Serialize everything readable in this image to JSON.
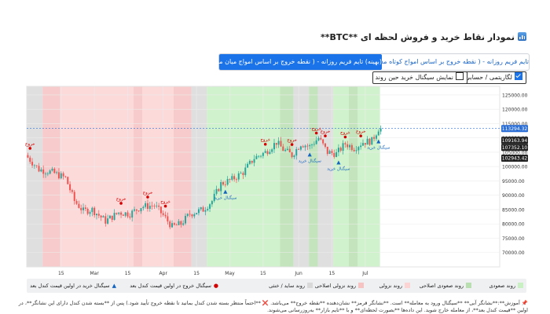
{
  "page": {
    "title": "نمودار نقاط خرید و فروش لحظه ای **BTC**",
    "title_icon": "bar-chart-icon"
  },
  "tabs": [
    {
      "label": "تایم فریم روزانه - ( نقطه خروج بر اساس امواج کوتاه مدت)",
      "active": false
    },
    {
      "label": "(بهینه) تایم فریم روزانه - ( نقطه خروج بر اساس امواج میان مدت)",
      "active": true
    }
  ],
  "options": {
    "log_label": "لگاریتمی / حسابی",
    "log_checked": true,
    "show_signals_label": "نمایش سیگنال خرید حین روند",
    "show_signals_checked": false
  },
  "chart_data": {
    "type": "candlestick",
    "y_axis": {
      "ticks": [
        70000,
        75000,
        80000,
        85000,
        90000,
        95000,
        100000,
        105000,
        110000,
        115000,
        120000,
        125000
      ],
      "tick_labels": [
        "70000.00",
        "75000.00",
        "80000.00",
        "85000.00",
        "90000.00",
        "95000.00",
        "100000.00",
        "105000.00",
        "110000.00",
        "115000.00",
        "120000.00",
        "125000.00"
      ]
    },
    "x_axis": {
      "ticks": [
        {
          "label": "15",
          "day": 15
        },
        {
          "label": "Mar",
          "day": 30
        },
        {
          "label": "15",
          "day": 45
        },
        {
          "label": "Apr",
          "day": 61
        },
        {
          "label": "15",
          "day": 76
        },
        {
          "label": "May",
          "day": 91
        },
        {
          "label": "15",
          "day": 106
        },
        {
          "label": "Jun",
          "day": 122
        },
        {
          "label": "15",
          "day": 137
        },
        {
          "label": "Jul",
          "day": 152
        }
      ]
    },
    "price_tags": [
      {
        "value": "113294.32",
        "price": 113294,
        "color": "#2b6fd6"
      },
      {
        "value": "109163.94",
        "price": 109164,
        "color": "#222222"
      },
      {
        "value": "107352.10",
        "price": 107352,
        "color": "#222222"
      },
      {
        "value": "102943.42",
        "price": 102943,
        "color": "#222222"
      }
    ],
    "start_price": 104000,
    "end_price": 113294,
    "waypoints": [
      [
        0,
        104000
      ],
      [
        6,
        99000
      ],
      [
        12,
        98000
      ],
      [
        18,
        96000
      ],
      [
        22,
        88000
      ],
      [
        26,
        84500
      ],
      [
        30,
        85000
      ],
      [
        36,
        81000
      ],
      [
        42,
        84000
      ],
      [
        47,
        83500
      ],
      [
        52,
        86000
      ],
      [
        58,
        86500
      ],
      [
        62,
        83000
      ],
      [
        66,
        79000
      ],
      [
        70,
        80000
      ],
      [
        74,
        83500
      ],
      [
        80,
        85000
      ],
      [
        84,
        88000
      ],
      [
        88,
        94000
      ],
      [
        93,
        95500
      ],
      [
        98,
        98000
      ],
      [
        103,
        103000
      ],
      [
        108,
        105000
      ],
      [
        113,
        108500
      ],
      [
        116,
        106000
      ],
      [
        120,
        104000
      ],
      [
        124,
        108000
      ],
      [
        128,
        107000
      ],
      [
        132,
        110000
      ],
      [
        136,
        105000
      ],
      [
        140,
        104500
      ],
      [
        144,
        108000
      ],
      [
        148,
        106500
      ],
      [
        152,
        108500
      ],
      [
        156,
        109000
      ],
      [
        159,
        113294
      ]
    ],
    "bands": [
      {
        "from": 0,
        "to": 7,
        "type": "sideways"
      },
      {
        "from": 7,
        "to": 15,
        "type": "weak-down"
      },
      {
        "from": 15,
        "to": 48,
        "type": "down"
      },
      {
        "from": 48,
        "to": 52,
        "type": "weak-down"
      },
      {
        "from": 52,
        "to": 66,
        "type": "down"
      },
      {
        "from": 66,
        "to": 74,
        "type": "weak-down"
      },
      {
        "from": 74,
        "to": 81,
        "type": "sideways"
      },
      {
        "from": 81,
        "to": 114,
        "type": "up"
      },
      {
        "from": 114,
        "to": 120,
        "type": "weak-up"
      },
      {
        "from": 120,
        "to": 127,
        "type": "sideways"
      },
      {
        "from": 127,
        "to": 131,
        "type": "weak-up"
      },
      {
        "from": 131,
        "to": 138,
        "type": "sideways"
      },
      {
        "from": 138,
        "to": 145,
        "type": "up"
      },
      {
        "from": 145,
        "to": 149,
        "type": "weak-up"
      },
      {
        "from": 149,
        "to": 159,
        "type": "up"
      }
    ],
    "signals": [
      {
        "kind": "exit",
        "day": 1,
        "label": "خروج"
      },
      {
        "kind": "exit",
        "day": 42,
        "label": "خروج"
      },
      {
        "kind": "exit",
        "day": 54,
        "label": "خروج"
      },
      {
        "kind": "exit",
        "day": 62,
        "label": "خروج"
      },
      {
        "kind": "exit",
        "day": 107,
        "label": "خروج"
      },
      {
        "kind": "exit",
        "day": 119,
        "label": "خروج"
      },
      {
        "kind": "exit",
        "day": 130,
        "label": "خروج"
      },
      {
        "kind": "exit",
        "day": 134,
        "label": "خروج"
      },
      {
        "kind": "exit",
        "day": 143,
        "label": "خروج"
      },
      {
        "kind": "exit",
        "day": 150,
        "label": "خروج"
      },
      {
        "kind": "buy",
        "day": 89,
        "label": "سیگنال خرید"
      },
      {
        "kind": "buy",
        "day": 127,
        "label": "سیگنال خرید"
      },
      {
        "kind": "buy",
        "day": 140,
        "label": "سیگنال خرید"
      },
      {
        "kind": "buy",
        "day": 158,
        "label": "سیگنال خرید"
      }
    ]
  },
  "legend": [
    {
      "label": "روند صعودی",
      "type": "swatch",
      "color": "#c8f0c3"
    },
    {
      "label": "روند صعودی اصلاحی",
      "type": "swatch",
      "color": "#b9dfb1"
    },
    {
      "label": "روند نزولی",
      "type": "swatch",
      "color": "#fcd4d4"
    },
    {
      "label": "روند نزولی اصلاحی",
      "type": "swatch",
      "color": "#f6c2c2"
    },
    {
      "label": "روند ساید / خنثی",
      "type": "swatch",
      "color": "#d9d9d9"
    },
    {
      "label": "سیگنال خروج در اولین قیمت کندل بعد",
      "type": "dot",
      "color": "#d40000"
    },
    {
      "label": "سیگنال خرید در اولین قیمت کندل بعد",
      "type": "tri",
      "color": "#1565c0"
    }
  ],
  "colors": {
    "up": "#26a69a",
    "down": "#ef5350",
    "band_up": "#c8f0c3",
    "band_weak_up": "#b9dfb1",
    "band_down": "#fcd4d4",
    "band_weak_down": "#f6c2c2",
    "band_sideways": "#d9d9d9",
    "buy": "#1565c0",
    "exit": "#d40000",
    "accent": "#1a73e8"
  },
  "note": {
    "icon": "pin-icon",
    "text": "آموزش**:**نشانگر آبی** **سیگنال ورود به معامله** است. **نشانگر قرمز** نشان‌دهنده **نقطه خروج** می‌باشد. ❌ **احتماً منتظر بسته شدن کندل بمانید تا نقطه خروج تأیید شود.) پس از **بسته شدن کندل دارای این نشانگر**، در اولین **قیمت کندل بعد**، از معامله خارج شوید. این داده‌ها **بصورت لحظه‌ای** و با **تایم بازار** به‌روزرسانی می‌شوند."
  }
}
